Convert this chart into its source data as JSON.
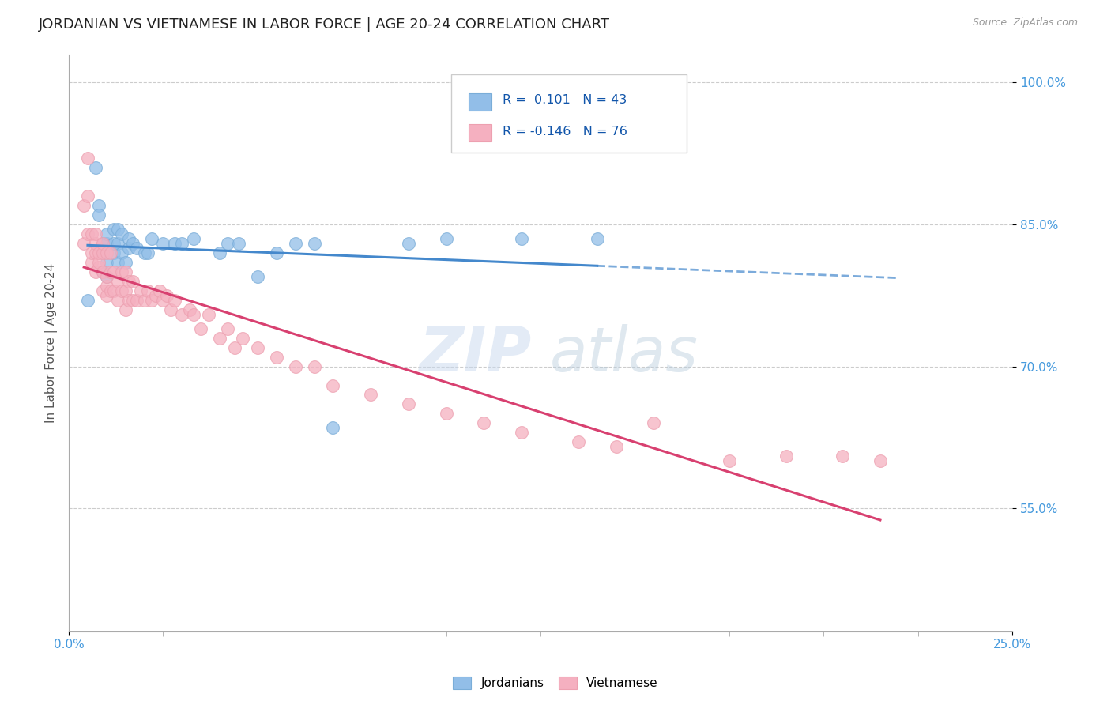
{
  "title": "JORDANIAN VS VIETNAMESE IN LABOR FORCE | AGE 20-24 CORRELATION CHART",
  "source": "Source: ZipAtlas.com",
  "ylabel": "In Labor Force | Age 20-24",
  "xlim": [
    0.0,
    0.25
  ],
  "ylim": [
    0.42,
    1.03
  ],
  "ytick_labels": [
    "55.0%",
    "70.0%",
    "85.0%",
    "100.0%"
  ],
  "ytick_values": [
    0.55,
    0.7,
    0.85,
    1.0
  ],
  "xtick_labels": [
    "0.0%",
    "25.0%"
  ],
  "xtick_values": [
    0.0,
    0.25
  ],
  "legend_R_jordanian": " 0.101",
  "legend_N_jordanian": "43",
  "legend_R_vietnamese": "-0.146",
  "legend_N_vietnamese": "76",
  "jordanian_color": "#92BEE8",
  "jordanian_edge": "#7AADD8",
  "vietnamese_color": "#F5B0C0",
  "vietnamese_edge": "#EDA0B0",
  "trendline_jordanian_color": "#4488CC",
  "trendline_vietnamese_color": "#D84070",
  "watermark_zip": "ZIP",
  "watermark_atlas": "atlas",
  "background_color": "#FFFFFF",
  "grid_color": "#CCCCCC",
  "title_fontsize": 13,
  "axis_label_fontsize": 11,
  "tick_fontsize": 11,
  "tick_color": "#4499DD",
  "title_color": "#222222",
  "jordanian_x": [
    0.005,
    0.007,
    0.008,
    0.008,
    0.009,
    0.009,
    0.009,
    0.01,
    0.01,
    0.01,
    0.01,
    0.012,
    0.012,
    0.012,
    0.013,
    0.013,
    0.013,
    0.014,
    0.014,
    0.015,
    0.016,
    0.016,
    0.017,
    0.018,
    0.02,
    0.021,
    0.022,
    0.025,
    0.028,
    0.03,
    0.033,
    0.04,
    0.042,
    0.045,
    0.05,
    0.055,
    0.06,
    0.065,
    0.07,
    0.09,
    0.1,
    0.12,
    0.14
  ],
  "jordanian_y": [
    0.77,
    0.91,
    0.87,
    0.86,
    0.8,
    0.82,
    0.83,
    0.795,
    0.81,
    0.83,
    0.84,
    0.82,
    0.83,
    0.845,
    0.81,
    0.83,
    0.845,
    0.82,
    0.84,
    0.81,
    0.825,
    0.835,
    0.83,
    0.825,
    0.82,
    0.82,
    0.835,
    0.83,
    0.83,
    0.83,
    0.835,
    0.82,
    0.83,
    0.83,
    0.795,
    0.82,
    0.83,
    0.83,
    0.635,
    0.83,
    0.835,
    0.835,
    0.835
  ],
  "vietnamese_x": [
    0.004,
    0.004,
    0.005,
    0.005,
    0.005,
    0.006,
    0.006,
    0.006,
    0.007,
    0.007,
    0.007,
    0.007,
    0.008,
    0.008,
    0.008,
    0.009,
    0.009,
    0.009,
    0.009,
    0.01,
    0.01,
    0.01,
    0.01,
    0.011,
    0.011,
    0.011,
    0.012,
    0.012,
    0.013,
    0.013,
    0.014,
    0.014,
    0.015,
    0.015,
    0.015,
    0.016,
    0.016,
    0.017,
    0.017,
    0.018,
    0.019,
    0.02,
    0.021,
    0.022,
    0.023,
    0.024,
    0.025,
    0.026,
    0.027,
    0.028,
    0.03,
    0.032,
    0.033,
    0.035,
    0.037,
    0.04,
    0.042,
    0.044,
    0.046,
    0.05,
    0.055,
    0.06,
    0.065,
    0.07,
    0.08,
    0.09,
    0.1,
    0.11,
    0.12,
    0.135,
    0.145,
    0.155,
    0.175,
    0.19,
    0.205,
    0.215
  ],
  "vietnamese_y": [
    0.83,
    0.87,
    0.84,
    0.88,
    0.92,
    0.81,
    0.82,
    0.84,
    0.8,
    0.82,
    0.83,
    0.84,
    0.805,
    0.81,
    0.82,
    0.78,
    0.8,
    0.82,
    0.83,
    0.775,
    0.785,
    0.795,
    0.82,
    0.78,
    0.8,
    0.82,
    0.78,
    0.8,
    0.77,
    0.79,
    0.78,
    0.8,
    0.76,
    0.78,
    0.8,
    0.77,
    0.79,
    0.77,
    0.79,
    0.77,
    0.78,
    0.77,
    0.78,
    0.77,
    0.775,
    0.78,
    0.77,
    0.775,
    0.76,
    0.77,
    0.755,
    0.76,
    0.755,
    0.74,
    0.755,
    0.73,
    0.74,
    0.72,
    0.73,
    0.72,
    0.71,
    0.7,
    0.7,
    0.68,
    0.67,
    0.66,
    0.65,
    0.64,
    0.63,
    0.62,
    0.615,
    0.64,
    0.6,
    0.605,
    0.605,
    0.6
  ]
}
